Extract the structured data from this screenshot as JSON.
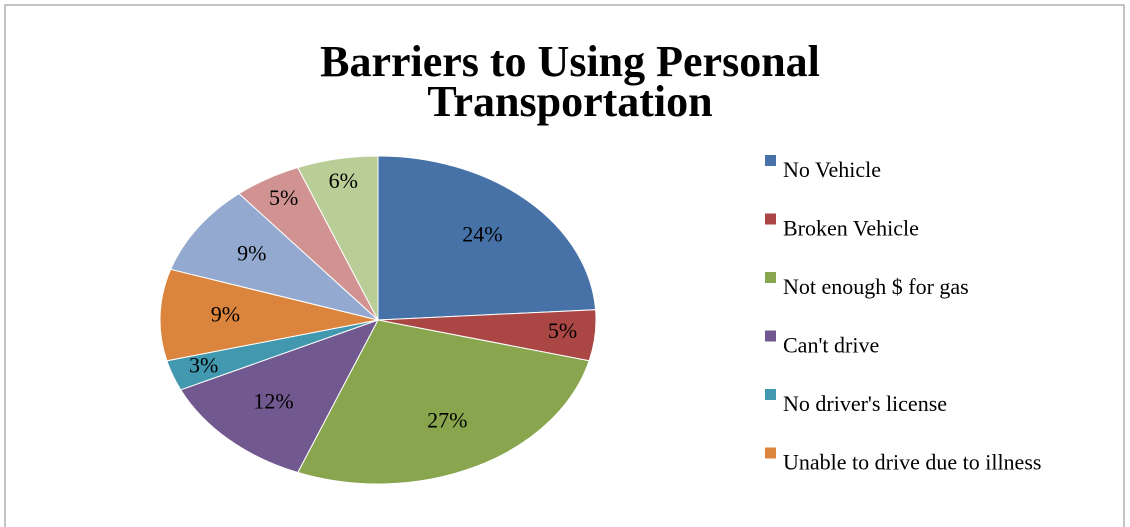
{
  "chart_data": {
    "type": "pie",
    "title": "Barriers to Using Personal Transportation",
    "categories": [
      "No Vehicle",
      "Broken Vehicle",
      "Not enough $ for gas",
      "Can't drive",
      "No driver's license",
      "Unable to drive due to illness",
      null,
      null,
      null
    ],
    "values": [
      24,
      5,
      27,
      12,
      3,
      9,
      9,
      5,
      6
    ],
    "value_labels": [
      "24%",
      "5%",
      "27%",
      "12%",
      "3%",
      "9%",
      "9%",
      "5%",
      "6%"
    ],
    "colors": [
      "#4672a8",
      "#aa4644",
      "#89a54e",
      "#71588f",
      "#4298af",
      "#db843d",
      "#93a9cf",
      "#d19392",
      "#b9cd96"
    ],
    "legend": "right"
  }
}
